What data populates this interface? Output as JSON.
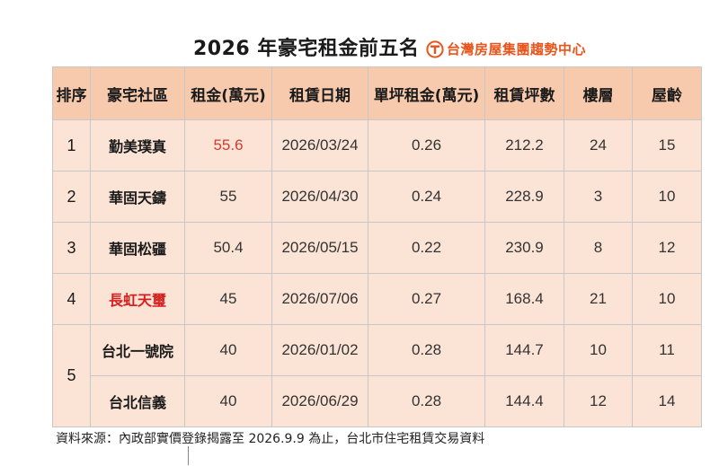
{
  "title": "2026 年豪宅租金前五名",
  "brand": {
    "name": "台灣房屋集團趨勢中心",
    "logo_icon": "taiwan-house-logo-icon",
    "color": "#e8541a"
  },
  "table": {
    "headers": [
      "排序",
      "豪宅社區",
      "租金(萬元)",
      "租賃日期",
      "單坪租金(萬元)",
      "租賃坪數",
      "樓層",
      "屋齡"
    ],
    "rows": [
      {
        "rank": "1",
        "name": "勤美璞真",
        "rent": "55.6",
        "date": "2026/03/24",
        "unit_rent": "0.26",
        "area": "212.2",
        "floor": "24",
        "age": "15"
      },
      {
        "rank": "2",
        "name": "華固天鑄",
        "rent": "55",
        "date": "2026/04/30",
        "unit_rent": "0.24",
        "area": "228.9",
        "floor": "3",
        "age": "10"
      },
      {
        "rank": "3",
        "name": "華固松疆",
        "rent": "50.4",
        "date": "2026/05/15",
        "unit_rent": "0.22",
        "area": "230.9",
        "floor": "8",
        "age": "12"
      },
      {
        "rank": "4",
        "name": "長虹天璽",
        "rent": "45",
        "date": "2026/07/06",
        "unit_rent": "0.27",
        "area": "168.4",
        "floor": "21",
        "age": "10"
      },
      {
        "rank": "5",
        "name": "台北一號院",
        "rent": "40",
        "date": "2026/01/02",
        "unit_rent": "0.28",
        "area": "144.7",
        "floor": "10",
        "age": "11"
      },
      {
        "rank": "",
        "name": "台北信義",
        "rent": "40",
        "date": "2026/06/29",
        "unit_rent": "0.28",
        "area": "144.4",
        "floor": "12",
        "age": "14"
      }
    ],
    "colors": {
      "header_bg": "#f8caad",
      "cell_bg": "#fbe4d6",
      "highlight_rent": "#d23b2f",
      "highlight_name": "#d62020"
    }
  },
  "footnote": "資料來源：內政部實價登錄揭露至 2026.9.9 為止，台北市住宅租賃交易資料"
}
